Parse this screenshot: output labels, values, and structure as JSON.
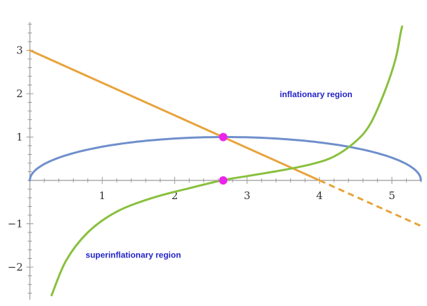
{
  "chart_data": {
    "type": "line",
    "x_range": [
      -0.03,
      5.4
    ],
    "y_range": [
      -2.75,
      3.65
    ],
    "x_ticks": [
      1,
      2,
      3,
      4,
      5
    ],
    "y_ticks": [
      -2,
      -1,
      1,
      2,
      3
    ],
    "x_tick_labels": [
      "1",
      "2",
      "3",
      "4",
      "5"
    ],
    "y_tick_labels": [
      "−2",
      "−1",
      "1",
      "2",
      "3"
    ],
    "x_minor_step": 0.2,
    "y_minor_step": 0.2,
    "grid": false,
    "series": [
      {
        "kind": "semicircle",
        "color": "#6f8fcb",
        "center": [
          2.7,
          0
        ],
        "x_radius": 2.7,
        "y_radius": 1
      },
      {
        "kind": "line",
        "color": "#e8a33a",
        "points": [
          [
            0,
            3
          ],
          [
            4,
            0
          ]
        ],
        "dashed_extension": [
          [
            4,
            0
          ],
          [
            5.4,
            -1.05
          ]
        ]
      },
      {
        "kind": "curve",
        "color": "#88c03d",
        "points": [
          [
            0.3,
            -2.65
          ],
          [
            0.5,
            -1.85
          ],
          [
            0.8,
            -1.2
          ],
          [
            1.2,
            -0.72
          ],
          [
            1.7,
            -0.4
          ],
          [
            2.2,
            -0.18
          ],
          [
            2.65,
            0
          ],
          [
            3.0,
            0.1
          ],
          [
            3.5,
            0.24
          ],
          [
            3.9,
            0.38
          ],
          [
            4.2,
            0.55
          ],
          [
            4.5,
            0.9
          ],
          [
            4.7,
            1.3
          ],
          [
            4.9,
            2.05
          ],
          [
            5.05,
            2.8
          ],
          [
            5.12,
            3.4
          ],
          [
            5.14,
            3.55
          ]
        ]
      }
    ],
    "markers": [
      {
        "x": 2.67,
        "y": 1,
        "color": "#ee22ee"
      },
      {
        "x": 2.67,
        "y": 0,
        "color": "#ee22ee"
      }
    ],
    "annotations": [
      {
        "text": "inflationary region",
        "x": 3.45,
        "y": 1.92
      },
      {
        "text": "superinflationary region",
        "x": 0.77,
        "y": -1.78
      }
    ]
  }
}
